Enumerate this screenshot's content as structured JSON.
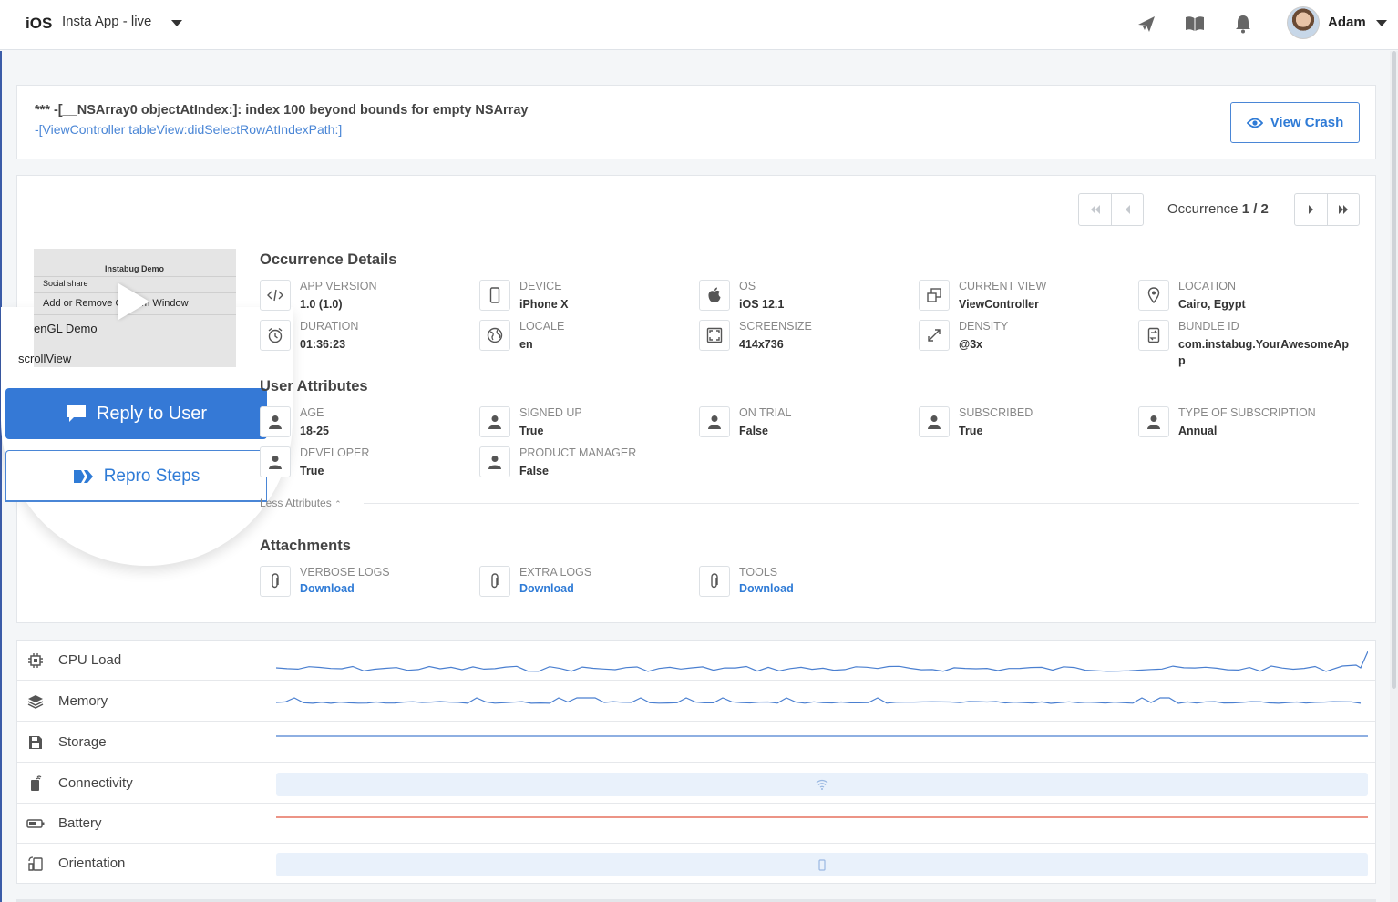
{
  "topbar": {
    "platform": "iOS",
    "app_name": "Insta App - live",
    "user_name": "Adam",
    "icons": [
      "rocket-icon",
      "book-icon",
      "bell-icon"
    ]
  },
  "crash": {
    "title": "*** -[__NSArray0 objectAtIndex:]: index 100 beyond bounds for empty NSArray",
    "subtitle": "-[ViewController tableView:didSelectRowAtIndexPath:]",
    "view_crash_label": "View Crash"
  },
  "pager": {
    "label": "Occurrence",
    "value": "1 / 2"
  },
  "thumbnail": {
    "title": "Instabug Demo",
    "rows": [
      "Social share",
      "Add or Remove Custom Window"
    ],
    "magnified_rows": [
      "enGL Demo",
      "scrollView"
    ]
  },
  "actions": {
    "reply_label": "Reply to User",
    "repro_label": "Repro Steps"
  },
  "occurrence_details": {
    "title": "Occurrence Details",
    "fields": [
      {
        "label": "APP VERSION",
        "value": "1.0 (1.0)",
        "icon": "code-icon"
      },
      {
        "label": "DEVICE",
        "value": "iPhone X",
        "icon": "phone-icon"
      },
      {
        "label": "OS",
        "value": "iOS 12.1",
        "icon": "apple-icon"
      },
      {
        "label": "CURRENT VIEW",
        "value": "ViewController",
        "icon": "window-icon"
      },
      {
        "label": "LOCATION",
        "value": "Cairo, Egypt",
        "icon": "location-pin-icon"
      },
      {
        "label": "DURATION",
        "value": "01:36:23",
        "icon": "alarm-clock-icon"
      },
      {
        "label": "LOCALE",
        "value": "en",
        "icon": "globe-icon"
      },
      {
        "label": "SCREENSIZE",
        "value": "414x736",
        "icon": "screen-icon"
      },
      {
        "label": "DENSITY",
        "value": "@3x",
        "icon": "expand-icon"
      },
      {
        "label": "BUNDLE ID",
        "value": "com.instabug.YourAwesomeApp",
        "icon": "bundle-icon"
      }
    ]
  },
  "user_attributes": {
    "title": "User Attributes",
    "fields": [
      {
        "label": "AGE",
        "value": "18-25"
      },
      {
        "label": "SIGNED UP",
        "value": "True"
      },
      {
        "label": "ON TRIAL",
        "value": "False"
      },
      {
        "label": "SUBSCRIBED",
        "value": "True"
      },
      {
        "label": "TYPE OF SUBSCRIPTION",
        "value": "Annual"
      },
      {
        "label": "DEVELOPER",
        "value": "True"
      },
      {
        "label": "PRODUCT MANAGER",
        "value": "False"
      }
    ],
    "less_label": "Less Attributes"
  },
  "attachments": {
    "title": "Attachments",
    "items": [
      {
        "label": "VERBOSE LOGS",
        "link": "Download"
      },
      {
        "label": "EXTRA LOGS",
        "link": "Download"
      },
      {
        "label": "TOOLS",
        "link": "Download"
      }
    ]
  },
  "metrics": [
    {
      "label": "CPU Load",
      "icon": "cpu-icon",
      "kind": "line",
      "color": "#4a7fd0"
    },
    {
      "label": "Memory",
      "icon": "layers-icon",
      "kind": "line",
      "color": "#4a7fd0"
    },
    {
      "label": "Storage",
      "icon": "floppy-disk-icon",
      "kind": "flat",
      "color": "#4a7fd0"
    },
    {
      "label": "Connectivity",
      "icon": "signal-icon",
      "kind": "band",
      "band_icon": "wifi-icon"
    },
    {
      "label": "Battery",
      "icon": "battery-icon",
      "kind": "flat",
      "color": "#e0533d"
    },
    {
      "label": "Orientation",
      "icon": "rotate-device-icon",
      "kind": "band",
      "band_icon": "portrait-phone-icon"
    }
  ]
}
